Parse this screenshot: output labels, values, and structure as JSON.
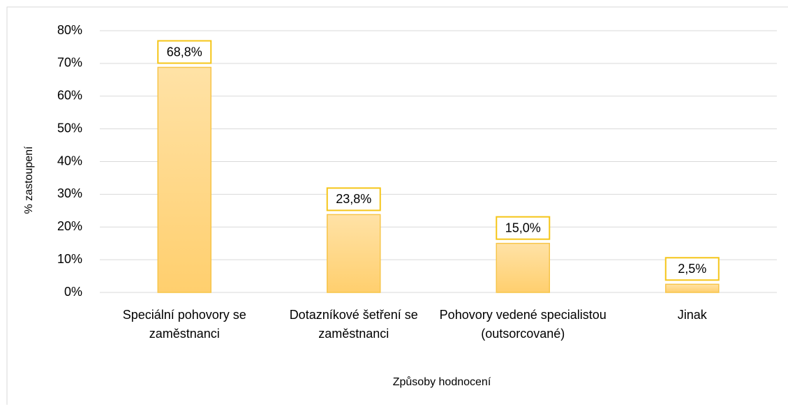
{
  "chart_data": {
    "type": "bar",
    "categories": [
      "Speciální pohovory se zaměstnanci",
      "Dotazníkové šetření se zaměstnanci",
      "Pohovory vedené specialistou (outsorcované)",
      "Jinak"
    ],
    "values": [
      68.8,
      23.8,
      15.0,
      2.5
    ],
    "value_labels": [
      "68,8%",
      "23,8%",
      "15,0%",
      "2,5%"
    ],
    "color": "#ffd37a",
    "ylim": [
      0,
      80
    ],
    "yticks": [
      {
        "value": 0,
        "label": "0%"
      },
      {
        "value": 10,
        "label": "10%"
      },
      {
        "value": 20,
        "label": "20%"
      },
      {
        "value": 30,
        "label": "30%"
      },
      {
        "value": 40,
        "label": "40%"
      },
      {
        "value": 50,
        "label": "50%"
      },
      {
        "value": 60,
        "label": "60%"
      },
      {
        "value": 70,
        "label": "70%"
      },
      {
        "value": 80,
        "label": "80%"
      }
    ],
    "grid": true,
    "ylabel": "% zastoupení",
    "xlabel": "Způsoby hodnocení"
  }
}
